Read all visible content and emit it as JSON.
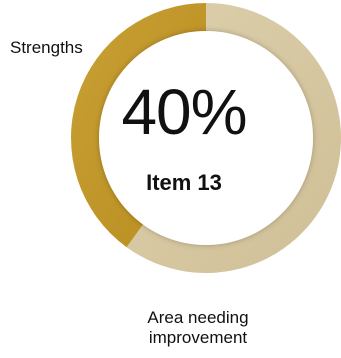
{
  "chart_data": {
    "type": "pie",
    "variant": "donut",
    "center_value": "40%",
    "center_label": "Item 13",
    "slices": [
      {
        "label": "Strengths",
        "value": 40,
        "color": "#c49a2a"
      },
      {
        "label": "Area needing improvement",
        "value": 60,
        "color": "#d6c7a0"
      }
    ],
    "labels": {
      "strengths": "Strengths",
      "area_line1": "Area needing",
      "area_line2": "improvement"
    }
  }
}
